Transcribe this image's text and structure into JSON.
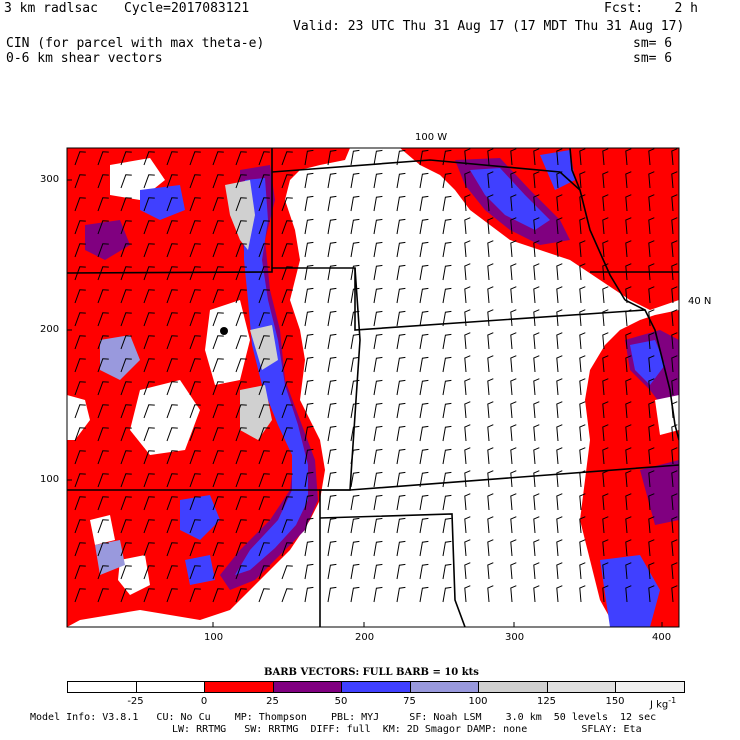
{
  "header": {
    "model": "3 km radlsac",
    "cycle": "Cycle=2017083121",
    "fcst": "Fcst:    2 h",
    "valid": "Valid: 23 UTC Thu 31 Aug 17 (17 MDT Thu 31 Aug 17)",
    "field1": "CIN (for parcel with max theta-e)",
    "field2": "0-6 km shear vectors",
    "sm1": "sm= 6",
    "sm2": "sm= 6"
  },
  "map": {
    "top_label": "100 W",
    "right_label": "40 N",
    "y_ticks": [
      "300",
      "200",
      "100"
    ],
    "x_ticks": [
      "100",
      "200",
      "300",
      "400"
    ]
  },
  "colorbar": {
    "title": "BARB VECTORS:  FULL BARB = 10 kts",
    "labels": [
      "-25",
      "0",
      "25",
      "50",
      "75",
      "100",
      "125",
      "150"
    ],
    "units": "J kg",
    "units_exp": "-1",
    "colors": [
      "#ffffff",
      "#ffffff",
      "#ff0000",
      "#800080",
      "#4040ff",
      "#9999dd",
      "#d0d0d0",
      "#e0e0e0",
      "#f0f0f0"
    ]
  },
  "footer": {
    "line1": "Model Info: V3.8.1   CU: No Cu    MP: Thompson    PBL: MYJ     SF: Noah LSM    3.0 km  50 levels  12 sec",
    "line2": "LW: RRTMG   SW: RRTMG  DIFF: full  KM: 2D Smagor DAMP: none         SFLAY: Eta"
  }
}
